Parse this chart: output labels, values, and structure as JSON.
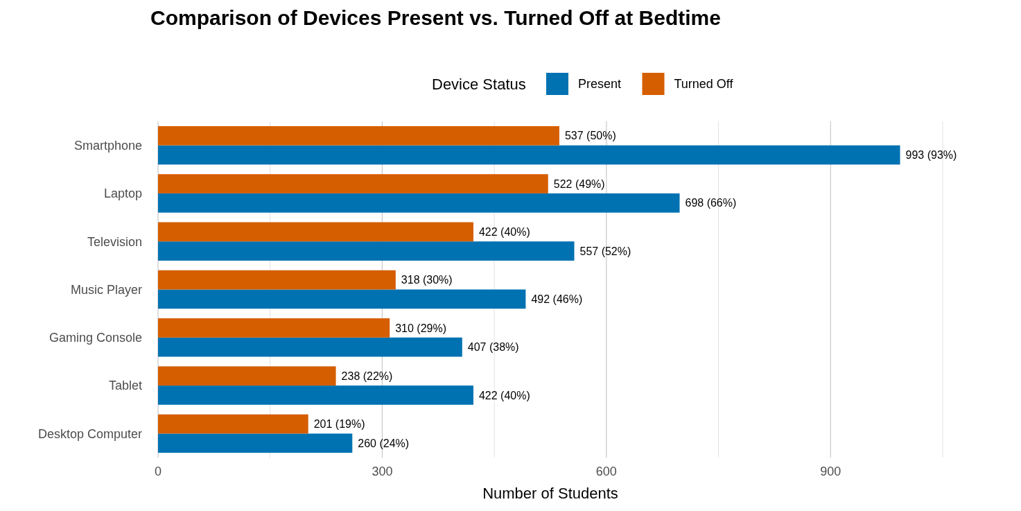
{
  "chart_data": {
    "type": "bar",
    "orientation": "horizontal",
    "title": "Comparison of Devices Present vs. Turned Off at Bedtime",
    "xlabel": "Number of Students",
    "legend_title": "Device Status",
    "legend": "top",
    "categories": [
      "Smartphone",
      "Laptop",
      "Television",
      "Music Player",
      "Gaming Console",
      "Tablet",
      "Desktop Computer"
    ],
    "series": [
      {
        "name": "Present",
        "color": "#0072b2",
        "values": [
          993,
          698,
          557,
          492,
          407,
          422,
          260
        ],
        "value_labels": [
          "993 (93%)",
          "698 (66%)",
          "557 (52%)",
          "492 (46%)",
          "407 (38%)",
          "422 (40%)",
          "260 (24%)"
        ]
      },
      {
        "name": "Turned Off",
        "color": "#d55e00",
        "values": [
          537,
          522,
          422,
          318,
          310,
          238,
          201
        ],
        "value_labels": [
          "537 (50%)",
          "522 (49%)",
          "422 (40%)",
          "318 (30%)",
          "310 (29%)",
          "238 (22%)",
          "201 (19%)"
        ]
      }
    ],
    "xlim": [
      0,
      1050
    ],
    "xticks": [
      0,
      {
        "value": 150,
        "label": null
      },
      300,
      {
        "value": 450,
        "label": null
      },
      600,
      {
        "value": 750,
        "label": null
      },
      900,
      {
        "value": 1050,
        "label": null
      }
    ],
    "grid": "x"
  }
}
